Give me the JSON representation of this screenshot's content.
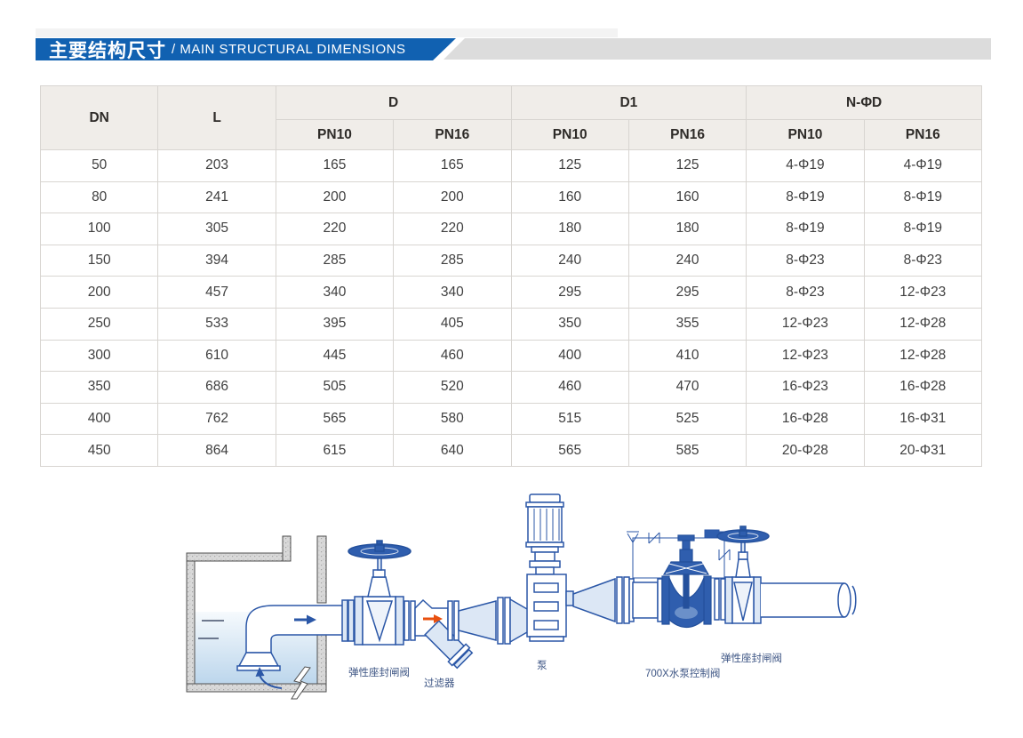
{
  "header": {
    "title_zh": "主要结构尺寸",
    "title_en": "/ MAIN STRUCTURAL DIMENSIONS",
    "bar_color": "#1161b1",
    "tail_color": "#dcdcdc"
  },
  "table": {
    "header_bg": "#f0ede9",
    "border_color": "#d8d5d1",
    "groups": [
      {
        "label": "DN",
        "span": 1
      },
      {
        "label": "L",
        "span": 1
      },
      {
        "label": "D",
        "span": 2
      },
      {
        "label": "D1",
        "span": 2
      },
      {
        "label": "N-ΦD",
        "span": 2
      }
    ],
    "subheaders": [
      "PN10",
      "PN16",
      "PN10",
      "PN16",
      "PN10",
      "PN16"
    ],
    "rows": [
      [
        "50",
        "203",
        "165",
        "165",
        "125",
        "125",
        "4-Φ19",
        "4-Φ19"
      ],
      [
        "80",
        "241",
        "200",
        "200",
        "160",
        "160",
        "8-Φ19",
        "8-Φ19"
      ],
      [
        "100",
        "305",
        "220",
        "220",
        "180",
        "180",
        "8-Φ19",
        "8-Φ19"
      ],
      [
        "150",
        "394",
        "285",
        "285",
        "240",
        "240",
        "8-Φ23",
        "8-Φ23"
      ],
      [
        "200",
        "457",
        "340",
        "340",
        "295",
        "295",
        "8-Φ23",
        "12-Φ23"
      ],
      [
        "250",
        "533",
        "395",
        "405",
        "350",
        "355",
        "12-Φ23",
        "12-Φ28"
      ],
      [
        "300",
        "610",
        "445",
        "460",
        "400",
        "410",
        "12-Φ23",
        "12-Φ28"
      ],
      [
        "350",
        "686",
        "505",
        "520",
        "460",
        "470",
        "16-Φ23",
        "16-Φ28"
      ],
      [
        "400",
        "762",
        "565",
        "580",
        "515",
        "525",
        "16-Φ28",
        "16-Φ31"
      ],
      [
        "450",
        "864",
        "615",
        "640",
        "565",
        "585",
        "20-Φ28",
        "20-Φ31"
      ]
    ]
  },
  "diagram": {
    "labels": {
      "gate_valve_left": "弹性座封闸阀",
      "strainer": "过滤器",
      "pump": "泵",
      "control_valve": "700X水泵控制阀",
      "gate_valve_right": "弹性座封闸阀"
    },
    "colors": {
      "line": "#2b57a7",
      "dark_fill": "#2f5eae",
      "light_fill": "#dce7f5",
      "water": "#bcd6ec",
      "wall": "#d9d9d9",
      "flow_arrow": "#2b57a7",
      "strainer_arrow": "#e8500f",
      "label_text": "#3d5584"
    }
  }
}
